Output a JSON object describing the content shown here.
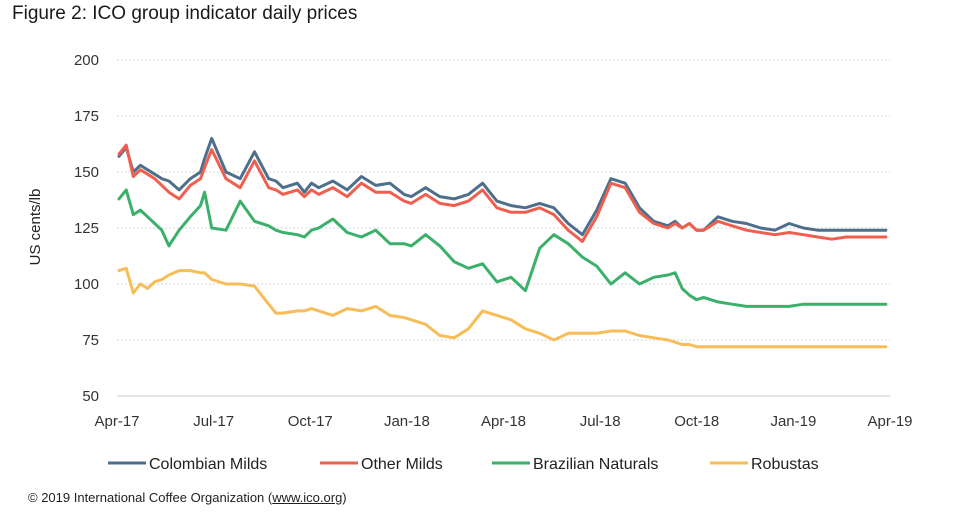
{
  "figure": {
    "title": "Figure 2: ICO group indicator daily prices"
  },
  "footer": {
    "text_before": "© 2019 International Coffee Organization (",
    "link": "www.ico.org",
    "text_after": ")"
  },
  "chart_data": {
    "type": "line",
    "title": "Figure 2: ICO group indicator daily prices",
    "xlabel": "",
    "ylabel": "US cents/lb",
    "ylim": [
      50,
      200
    ],
    "yticks": [
      50,
      75,
      100,
      125,
      150,
      175,
      200
    ],
    "xticks": [
      "Apr-17",
      "Jul-17",
      "Oct-17",
      "Jan-18",
      "Apr-18",
      "Jul-18",
      "Oct-18",
      "Jan-19",
      "Apr-19"
    ],
    "grid": "horizontal dotted",
    "legend_position": "bottom",
    "x": [
      "2017-04-03",
      "2017-04-10",
      "2017-04-17",
      "2017-04-24",
      "2017-05-01",
      "2017-05-08",
      "2017-05-15",
      "2017-05-22",
      "2017-06-01",
      "2017-06-12",
      "2017-06-22",
      "2017-06-26",
      "2017-07-03",
      "2017-07-17",
      "2017-07-31",
      "2017-08-14",
      "2017-08-28",
      "2017-09-04",
      "2017-09-11",
      "2017-09-25",
      "2017-10-02",
      "2017-10-09",
      "2017-10-16",
      "2017-10-30",
      "2017-11-13",
      "2017-11-27",
      "2017-12-11",
      "2017-12-25",
      "2018-01-08",
      "2018-01-15",
      "2018-01-29",
      "2018-02-12",
      "2018-02-26",
      "2018-03-12",
      "2018-03-26",
      "2018-04-09",
      "2018-04-23",
      "2018-05-07",
      "2018-05-21",
      "2018-06-04",
      "2018-06-18",
      "2018-07-02",
      "2018-07-16",
      "2018-07-30",
      "2018-08-13",
      "2018-08-27",
      "2018-09-10",
      "2018-09-24",
      "2018-10-01",
      "2018-10-08",
      "2018-10-15",
      "2018-10-22",
      "2018-10-29",
      "2018-11-12",
      "2018-11-26",
      "2018-12-10",
      "2018-12-24",
      "2019-01-07",
      "2019-01-21",
      "2019-02-04",
      "2019-02-18",
      "2019-03-04",
      "2019-03-18",
      "2019-04-01",
      "2019-04-15",
      "2019-04-26"
    ],
    "series": [
      {
        "name": "Colombian Milds",
        "color": "#4e6f8c",
        "values": [
          157,
          161,
          150,
          153,
          151,
          149,
          147,
          146,
          142,
          147,
          150,
          156,
          165,
          150,
          147,
          159,
          147,
          146,
          143,
          145,
          141,
          145,
          143,
          146,
          142,
          148,
          144,
          145,
          140,
          139,
          143,
          139,
          138,
          140,
          145,
          137,
          135,
          134,
          136,
          134,
          127,
          122,
          133,
          147,
          145,
          134,
          128,
          126,
          128,
          125,
          127,
          124,
          124,
          130,
          128,
          127,
          125,
          124,
          127,
          125,
          124,
          124,
          124,
          124,
          124,
          124
        ]
      },
      {
        "name": "Other Milds",
        "color": "#ef5f4f",
        "values": [
          158,
          162,
          148,
          151,
          149,
          147,
          144,
          141,
          138,
          144,
          147,
          152,
          160,
          147,
          143,
          155,
          143,
          142,
          140,
          142,
          139,
          142,
          140,
          143,
          139,
          145,
          141,
          141,
          137,
          136,
          140,
          136,
          135,
          137,
          142,
          134,
          132,
          132,
          134,
          131,
          124,
          119,
          130,
          145,
          143,
          132,
          127,
          125,
          127,
          125,
          127,
          124,
          124,
          128,
          126,
          124,
          123,
          122,
          123,
          122,
          121,
          120,
          121,
          121,
          121,
          121
        ]
      },
      {
        "name": "Brazilian Naturals",
        "color": "#3bb06a",
        "values": [
          138,
          142,
          131,
          133,
          130,
          127,
          124,
          117,
          124,
          130,
          135,
          141,
          125,
          124,
          137,
          128,
          126,
          124,
          123,
          122,
          121,
          124,
          125,
          129,
          123,
          121,
          124,
          118,
          118,
          117,
          122,
          117,
          110,
          107,
          109,
          101,
          103,
          97,
          116,
          122,
          118,
          112,
          108,
          100,
          105,
          100,
          103,
          104,
          105,
          98,
          95,
          93,
          94,
          92,
          91,
          90,
          90,
          90,
          90,
          91,
          91,
          91,
          91,
          91,
          91,
          91
        ]
      },
      {
        "name": "Robustas",
        "color": "#f7bd58",
        "values": [
          106,
          107,
          96,
          100,
          98,
          101,
          102,
          104,
          106,
          106,
          105,
          105,
          102,
          100,
          100,
          99,
          91,
          87,
          87,
          88,
          88,
          89,
          88,
          86,
          89,
          88,
          90,
          86,
          85,
          84,
          82,
          77,
          76,
          80,
          88,
          86,
          84,
          80,
          78,
          75,
          78,
          78,
          78,
          79,
          79,
          77,
          76,
          75,
          74,
          73,
          73,
          72,
          72,
          72,
          72,
          72,
          72,
          72,
          72,
          72,
          72,
          72,
          72,
          72,
          72,
          72
        ]
      }
    ]
  }
}
